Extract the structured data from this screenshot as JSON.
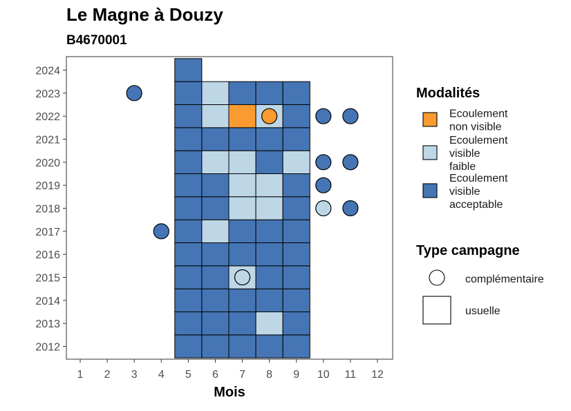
{
  "chart_data": {
    "type": "heatmap",
    "title": "Le Magne à Douzy",
    "subtitle": "B4670001",
    "xlabel": "Mois",
    "ylabel": "",
    "x_ticks": [
      1,
      2,
      3,
      4,
      5,
      6,
      7,
      8,
      9,
      10,
      11,
      12
    ],
    "y_ticks": [
      2012,
      2013,
      2014,
      2015,
      2016,
      2017,
      2018,
      2019,
      2020,
      2021,
      2022,
      2023,
      2024
    ],
    "xlim": [
      0.5,
      12.5
    ],
    "ylim": [
      2011.5,
      2024.5
    ],
    "categories": {
      "ecoulement_non_visible": {
        "label": "Ecoulement\nnon visible",
        "color": "#fa9a30"
      },
      "ecoulement_visible_faible": {
        "label": "Ecoulement\nvisible\nfaible",
        "color": "#bdd7e7"
      },
      "ecoulement_visible_acceptable": {
        "label": "Ecoulement\nvisible\nacceptable",
        "color": "#4575b4"
      }
    },
    "usuelle": [
      {
        "year": 2012,
        "month": 5,
        "cat": "ecoulement_visible_acceptable"
      },
      {
        "year": 2012,
        "month": 6,
        "cat": "ecoulement_visible_acceptable"
      },
      {
        "year": 2012,
        "month": 7,
        "cat": "ecoulement_visible_acceptable"
      },
      {
        "year": 2012,
        "month": 8,
        "cat": "ecoulement_visible_acceptable"
      },
      {
        "year": 2012,
        "month": 9,
        "cat": "ecoulement_visible_acceptable"
      },
      {
        "year": 2013,
        "month": 5,
        "cat": "ecoulement_visible_acceptable"
      },
      {
        "year": 2013,
        "month": 6,
        "cat": "ecoulement_visible_acceptable"
      },
      {
        "year": 2013,
        "month": 7,
        "cat": "ecoulement_visible_acceptable"
      },
      {
        "year": 2013,
        "month": 8,
        "cat": "ecoulement_visible_faible"
      },
      {
        "year": 2013,
        "month": 9,
        "cat": "ecoulement_visible_acceptable"
      },
      {
        "year": 2014,
        "month": 5,
        "cat": "ecoulement_visible_acceptable"
      },
      {
        "year": 2014,
        "month": 6,
        "cat": "ecoulement_visible_acceptable"
      },
      {
        "year": 2014,
        "month": 7,
        "cat": "ecoulement_visible_acceptable"
      },
      {
        "year": 2014,
        "month": 8,
        "cat": "ecoulement_visible_acceptable"
      },
      {
        "year": 2014,
        "month": 9,
        "cat": "ecoulement_visible_acceptable"
      },
      {
        "year": 2015,
        "month": 5,
        "cat": "ecoulement_visible_acceptable"
      },
      {
        "year": 2015,
        "month": 6,
        "cat": "ecoulement_visible_acceptable"
      },
      {
        "year": 2015,
        "month": 7,
        "cat": "ecoulement_visible_faible"
      },
      {
        "year": 2015,
        "month": 8,
        "cat": "ecoulement_visible_acceptable"
      },
      {
        "year": 2015,
        "month": 9,
        "cat": "ecoulement_visible_acceptable"
      },
      {
        "year": 2016,
        "month": 5,
        "cat": "ecoulement_visible_acceptable"
      },
      {
        "year": 2016,
        "month": 6,
        "cat": "ecoulement_visible_acceptable"
      },
      {
        "year": 2016,
        "month": 7,
        "cat": "ecoulement_visible_acceptable"
      },
      {
        "year": 2016,
        "month": 8,
        "cat": "ecoulement_visible_acceptable"
      },
      {
        "year": 2016,
        "month": 9,
        "cat": "ecoulement_visible_acceptable"
      },
      {
        "year": 2017,
        "month": 5,
        "cat": "ecoulement_visible_acceptable"
      },
      {
        "year": 2017,
        "month": 6,
        "cat": "ecoulement_visible_faible"
      },
      {
        "year": 2017,
        "month": 7,
        "cat": "ecoulement_visible_acceptable"
      },
      {
        "year": 2017,
        "month": 8,
        "cat": "ecoulement_visible_acceptable"
      },
      {
        "year": 2017,
        "month": 9,
        "cat": "ecoulement_visible_acceptable"
      },
      {
        "year": 2018,
        "month": 5,
        "cat": "ecoulement_visible_acceptable"
      },
      {
        "year": 2018,
        "month": 6,
        "cat": "ecoulement_visible_acceptable"
      },
      {
        "year": 2018,
        "month": 7,
        "cat": "ecoulement_visible_faible"
      },
      {
        "year": 2018,
        "month": 8,
        "cat": "ecoulement_visible_faible"
      },
      {
        "year": 2018,
        "month": 9,
        "cat": "ecoulement_visible_acceptable"
      },
      {
        "year": 2019,
        "month": 5,
        "cat": "ecoulement_visible_acceptable"
      },
      {
        "year": 2019,
        "month": 6,
        "cat": "ecoulement_visible_acceptable"
      },
      {
        "year": 2019,
        "month": 7,
        "cat": "ecoulement_visible_faible"
      },
      {
        "year": 2019,
        "month": 8,
        "cat": "ecoulement_visible_faible"
      },
      {
        "year": 2019,
        "month": 9,
        "cat": "ecoulement_visible_acceptable"
      },
      {
        "year": 2020,
        "month": 5,
        "cat": "ecoulement_visible_acceptable"
      },
      {
        "year": 2020,
        "month": 6,
        "cat": "ecoulement_visible_faible"
      },
      {
        "year": 2020,
        "month": 7,
        "cat": "ecoulement_visible_faible"
      },
      {
        "year": 2020,
        "month": 8,
        "cat": "ecoulement_visible_acceptable"
      },
      {
        "year": 2020,
        "month": 9,
        "cat": "ecoulement_visible_faible"
      },
      {
        "year": 2021,
        "month": 5,
        "cat": "ecoulement_visible_acceptable"
      },
      {
        "year": 2021,
        "month": 6,
        "cat": "ecoulement_visible_acceptable"
      },
      {
        "year": 2021,
        "month": 7,
        "cat": "ecoulement_visible_acceptable"
      },
      {
        "year": 2021,
        "month": 8,
        "cat": "ecoulement_visible_acceptable"
      },
      {
        "year": 2021,
        "month": 9,
        "cat": "ecoulement_visible_acceptable"
      },
      {
        "year": 2022,
        "month": 5,
        "cat": "ecoulement_visible_acceptable"
      },
      {
        "year": 2022,
        "month": 6,
        "cat": "ecoulement_visible_faible"
      },
      {
        "year": 2022,
        "month": 7,
        "cat": "ecoulement_non_visible"
      },
      {
        "year": 2022,
        "month": 8,
        "cat": "ecoulement_visible_faible"
      },
      {
        "year": 2022,
        "month": 9,
        "cat": "ecoulement_visible_acceptable"
      },
      {
        "year": 2023,
        "month": 5,
        "cat": "ecoulement_visible_acceptable"
      },
      {
        "year": 2023,
        "month": 6,
        "cat": "ecoulement_visible_faible"
      },
      {
        "year": 2023,
        "month": 7,
        "cat": "ecoulement_visible_acceptable"
      },
      {
        "year": 2023,
        "month": 8,
        "cat": "ecoulement_visible_acceptable"
      },
      {
        "year": 2023,
        "month": 9,
        "cat": "ecoulement_visible_acceptable"
      },
      {
        "year": 2024,
        "month": 5,
        "cat": "ecoulement_visible_acceptable"
      }
    ],
    "complementaire": [
      {
        "year": 2023,
        "month": 3,
        "cat": "ecoulement_visible_acceptable"
      },
      {
        "year": 2022,
        "month": 8,
        "cat": "ecoulement_non_visible"
      },
      {
        "year": 2022,
        "month": 10,
        "cat": "ecoulement_visible_acceptable"
      },
      {
        "year": 2022,
        "month": 11,
        "cat": "ecoulement_visible_acceptable"
      },
      {
        "year": 2020,
        "month": 10,
        "cat": "ecoulement_visible_acceptable"
      },
      {
        "year": 2020,
        "month": 11,
        "cat": "ecoulement_visible_acceptable"
      },
      {
        "year": 2019,
        "month": 10,
        "cat": "ecoulement_visible_acceptable"
      },
      {
        "year": 2018,
        "month": 10,
        "cat": "ecoulement_visible_faible"
      },
      {
        "year": 2018,
        "month": 11,
        "cat": "ecoulement_visible_acceptable"
      },
      {
        "year": 2017,
        "month": 4,
        "cat": "ecoulement_visible_acceptable"
      },
      {
        "year": 2015,
        "month": 7,
        "cat": "ecoulement_visible_faible"
      }
    ],
    "legend": {
      "modalites_title": "Modalités",
      "modalites_order": [
        "ecoulement_non_visible",
        "ecoulement_visible_faible",
        "ecoulement_visible_acceptable"
      ],
      "type_title": "Type campagne",
      "type_labels": {
        "complementaire": "complémentaire",
        "usuelle": "usuelle"
      }
    }
  }
}
